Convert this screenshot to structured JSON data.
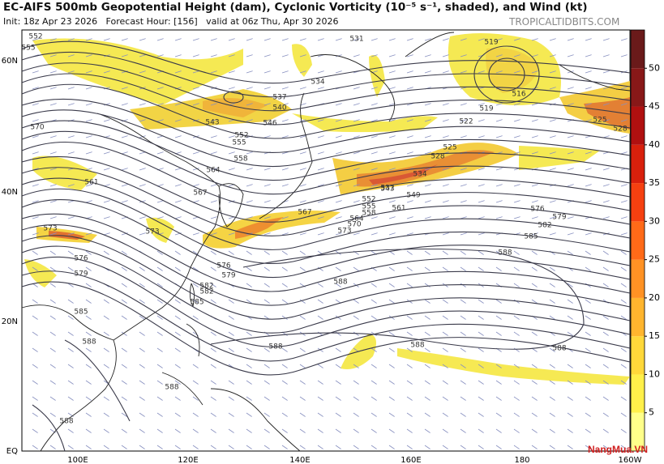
{
  "header": {
    "title": "EC-AIFS 500mb Geopotential Height (dam), Cyclonic Vorticity (10⁻⁵ s⁻¹, shaded), and Wind (kt)",
    "subtitle": "Init: 18z Apr 23 2026   Forecast Hour: [156]   valid at 06z Thu, Apr 30 2026",
    "site": "TROPICALTIDBITS.COM"
  },
  "map": {
    "lat_labels": [
      "60N",
      "40N",
      "20N",
      "EQ"
    ],
    "lon_labels": [
      "100E",
      "120E",
      "140E",
      "160E",
      "180",
      "160W"
    ],
    "contour_labels": [
      "552",
      "555",
      "570",
      "531",
      "519",
      "516",
      "519",
      "522",
      "525",
      "528",
      "525",
      "528",
      "534",
      "537",
      "543",
      "549",
      "552",
      "555",
      "558",
      "561",
      "564",
      "567",
      "570",
      "573",
      "576",
      "579",
      "582",
      "585",
      "588",
      "588",
      "588",
      "588",
      "588",
      "585",
      "582",
      "579",
      "576",
      "573",
      "567",
      "561",
      "564",
      "558",
      "555",
      "552",
      "546",
      "540",
      "537",
      "543",
      "534",
      "573",
      "576",
      "579",
      "582",
      "585",
      "588",
      "588",
      "588"
    ]
  },
  "colorbar": {
    "ticks": [
      "50",
      "45",
      "40",
      "35",
      "30",
      "25",
      "20",
      "15",
      "10",
      "5"
    ]
  },
  "watermark": "NangMua.VN"
}
